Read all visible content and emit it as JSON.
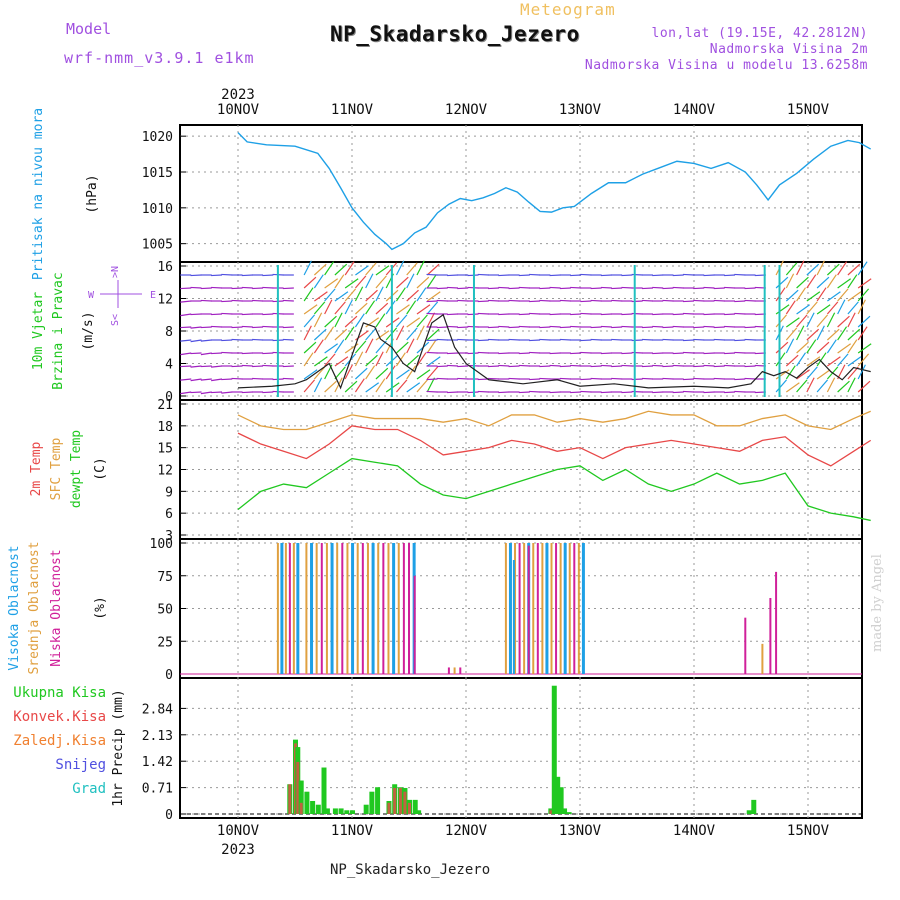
{
  "header": {
    "model_label": "Model",
    "model_name": "wrf-nmm_v3.9.1 e1km",
    "meteogram_word": "Meteogram",
    "title": "NP_Skadarsko_Jezero",
    "lonlat": "lon,lat (19.15E, 42.2812N)",
    "altitude_2m": "Nadmorska Visina 2m",
    "altitude_model": "Nadmorska Visina u modelu 13.6258m",
    "year_top": "2023",
    "year_bottom": "2023"
  },
  "footer": {
    "station_name": "NP_Skadarsko_Jezero",
    "credit": "made by Angel"
  },
  "colors": {
    "pressure": "#1ea0e6",
    "t2m": "#e84848",
    "sfc": "#e0a040",
    "dewpt": "#20c820",
    "high_cloud": "#1ea0e6",
    "mid_cloud": "#e0a040",
    "low_cloud": "#d0209a",
    "total_precip": "#20c820",
    "conv_precip": "#e84848",
    "frozen_precip": "#f08030",
    "snow": "#5050e0",
    "graupel": "#20c0c0",
    "wind_label": "#20c820",
    "title_shadow": "#888888"
  },
  "chart_data": [
    {
      "type": "line",
      "panel": "pressure",
      "ylabel_colored": "Pritisak na nivou mora",
      "ylabel_unit": "(hPa)",
      "x_tick_labels": [
        "10NOV",
        "11NOV",
        "12NOV",
        "13NOV",
        "14NOV",
        "15NOV"
      ],
      "ylim": [
        1003,
        1021
      ],
      "yticks": [
        1005,
        1010,
        1015,
        1020
      ],
      "grid": true,
      "x_days": [
        0,
        0.08,
        0.25,
        0.5,
        0.7,
        0.8,
        0.9,
        1.0,
        1.1,
        1.2,
        1.3,
        1.35,
        1.45,
        1.55,
        1.65,
        1.75,
        1.85,
        1.95,
        2.05,
        2.15,
        2.25,
        2.35,
        2.45,
        2.55,
        2.65,
        2.75,
        2.85,
        2.95,
        3.1,
        3.25,
        3.4,
        3.55,
        3.7,
        3.85,
        4.0,
        4.15,
        4.3,
        4.45,
        4.55,
        4.65,
        4.75,
        4.9,
        5.05,
        5.2,
        5.35,
        5.45,
        5.55
      ],
      "series": [
        {
          "values": [
            1020.5,
            1019.2,
            1018.8,
            1018.6,
            1017.6,
            1015.5,
            1012.8,
            1010.0,
            1008.0,
            1006.3,
            1005.0,
            1004.2,
            1005.0,
            1006.5,
            1007.3,
            1009.3,
            1010.5,
            1011.3,
            1011.0,
            1011.4,
            1012.0,
            1012.8,
            1012.2,
            1010.8,
            1009.5,
            1009.4,
            1010.0,
            1010.2,
            1012.0,
            1013.5,
            1013.5,
            1014.7,
            1015.6,
            1016.5,
            1016.2,
            1015.5,
            1016.3,
            1015.0,
            1013.2,
            1011.1,
            1013.2,
            1014.8,
            1016.8,
            1018.6,
            1019.4,
            1019.1,
            1018.2
          ]
        }
      ]
    },
    {
      "type": "line",
      "panel": "wind",
      "ylabel_colored_1": "10m Vjetar",
      "ylabel_colored_2": "Brzina i Pravac",
      "ylabel_unit": "(m/s)",
      "ylim": [
        0,
        16
      ],
      "yticks": [
        0,
        4,
        8,
        12,
        16
      ],
      "compass_note": "N, E, W, S compass legend",
      "x_days": [
        0,
        0.3,
        0.5,
        0.6,
        0.7,
        0.8,
        0.85,
        0.9,
        1.0,
        1.1,
        1.2,
        1.25,
        1.35,
        1.45,
        1.55,
        1.6,
        1.7,
        1.8,
        1.9,
        2.0,
        2.2,
        2.5,
        2.8,
        3.0,
        3.3,
        3.6,
        4.0,
        4.3,
        4.5,
        4.6,
        4.7,
        4.8,
        4.9,
        5.0,
        5.1,
        5.2,
        5.3,
        5.4,
        5.55
      ],
      "series": [
        {
          "name": "speed",
          "values": [
            1,
            1.2,
            1.5,
            2,
            3,
            4,
            2.5,
            1,
            5,
            9,
            8.5,
            7,
            6,
            4,
            3,
            5,
            9,
            10,
            6,
            4,
            2,
            1.5,
            2,
            1.2,
            1.5,
            1,
            1.2,
            1,
            1.5,
            3,
            2.5,
            3,
            2.2,
            3.5,
            4.5,
            3,
            2,
            3.5,
            3
          ]
        }
      ]
    },
    {
      "type": "line",
      "panel": "temperature",
      "ylabel_colored_1": "2m Temp",
      "ylabel_colored_2": "SFC Temp",
      "ylabel_colored_3": "dewpt Temp",
      "ylabel_unit": "(C)",
      "ylim": [
        3,
        21
      ],
      "yticks": [
        3,
        6,
        9,
        12,
        15,
        18,
        21
      ],
      "x_days": [
        0,
        0.2,
        0.4,
        0.6,
        0.8,
        1.0,
        1.2,
        1.4,
        1.6,
        1.8,
        2.0,
        2.2,
        2.4,
        2.6,
        2.8,
        3.0,
        3.2,
        3.4,
        3.6,
        3.8,
        4.0,
        4.2,
        4.4,
        4.6,
        4.8,
        5.0,
        5.2,
        5.4,
        5.55
      ],
      "series": [
        {
          "name": "2m Temp",
          "values": [
            17,
            15.5,
            14.5,
            13.5,
            15.5,
            18,
            17.5,
            17.5,
            16,
            14,
            14.5,
            15,
            16,
            15.5,
            14.5,
            15,
            13.5,
            15,
            15.5,
            16,
            15.5,
            15,
            14.5,
            16,
            16.5,
            14,
            12.5,
            14.5,
            16
          ]
        },
        {
          "name": "SFC Temp",
          "values": [
            19.5,
            18,
            17.5,
            17.5,
            18.5,
            19.5,
            19,
            19,
            19,
            18.5,
            19,
            18,
            19.5,
            19.5,
            18.5,
            19,
            18.5,
            19,
            20,
            19.5,
            19.5,
            18,
            18,
            19,
            19.5,
            18,
            17.5,
            19,
            20
          ]
        },
        {
          "name": "dewpt Temp",
          "values": [
            6.5,
            9,
            10,
            9.5,
            11.5,
            13.5,
            13,
            12.5,
            10,
            8.5,
            8,
            9,
            10,
            11,
            12,
            12.5,
            10.5,
            12,
            10,
            9,
            10,
            11.5,
            10,
            10.5,
            11.5,
            7,
            6,
            5.5,
            5
          ]
        }
      ]
    },
    {
      "type": "bar",
      "panel": "cloud",
      "ylabel_colored_1": "Visoka Oblacnost",
      "ylabel_colored_2": "Srednja Oblacnost",
      "ylabel_colored_3": "Niska Oblacnost",
      "ylabel_unit": "(%)",
      "ylim": [
        0,
        100
      ],
      "yticks": [
        0,
        25,
        50,
        75,
        100
      ],
      "groups": [
        {
          "start_day": 0.35,
          "end_day": 0.55,
          "step_day": 0.035,
          "high": 100,
          "mid": 100,
          "low": 0
        },
        {
          "start_day": 0.6,
          "end_day": 1.55,
          "step_day": 0.045,
          "high": 100,
          "mid": 100,
          "low": 0
        },
        {
          "start_day": 2.35,
          "end_day": 3.05,
          "step_day": 0.04,
          "high": 100,
          "mid": 100,
          "low": 0
        }
      ],
      "extras": [
        {
          "day": 1.5,
          "series": "low",
          "value": 100
        },
        {
          "day": 1.55,
          "series": "low",
          "value": 75
        },
        {
          "day": 1.85,
          "series": "low",
          "value": 5
        },
        {
          "day": 1.9,
          "series": "mid",
          "value": 5
        },
        {
          "day": 1.95,
          "series": "low",
          "value": 5
        },
        {
          "day": 2.42,
          "series": "high",
          "value": 87
        },
        {
          "day": 2.55,
          "series": "low",
          "value": 98
        },
        {
          "day": 4.45,
          "series": "low",
          "value": 43
        },
        {
          "day": 4.6,
          "series": "mid",
          "value": 23
        },
        {
          "day": 4.67,
          "series": "low",
          "value": 58
        },
        {
          "day": 4.72,
          "series": "low",
          "value": 78
        }
      ]
    },
    {
      "type": "bar",
      "panel": "precip",
      "ylabel_unit": "1hr Precip (mm)",
      "legend": [
        "Ukupna Kisa",
        "Konvek.Kisa",
        "Zaledj.Kisa",
        "Snijeg",
        "Grad"
      ],
      "ylim": [
        0,
        3.55
      ],
      "yticks": [
        0,
        0.71,
        1.42,
        2.13,
        2.84
      ],
      "x_days": [
        0.45,
        0.5,
        0.52,
        0.55,
        0.6,
        0.65,
        0.7,
        0.75,
        0.78,
        0.85,
        0.9,
        0.95,
        1.0,
        1.12,
        1.17,
        1.22,
        1.32,
        1.37,
        1.42,
        1.46,
        1.5,
        1.55,
        1.58,
        2.74,
        2.77,
        2.8,
        2.83,
        2.86,
        2.9,
        4.48,
        4.52
      ],
      "series": [
        {
          "name": "Ukupna Kisa",
          "values": [
            0.8,
            2.0,
            1.8,
            0.9,
            0.6,
            0.35,
            0.25,
            1.25,
            0.15,
            0.15,
            0.15,
            0.1,
            0.1,
            0.25,
            0.6,
            0.72,
            0.35,
            0.8,
            0.72,
            0.7,
            0.38,
            0.38,
            0.1,
            0.15,
            3.45,
            1.0,
            0.72,
            0.15,
            0.05,
            0.1,
            0.38
          ]
        },
        {
          "name": "Konvek.Kisa",
          "values": [
            0.8,
            1.9,
            1.4,
            0.3,
            0,
            0,
            0,
            0,
            0,
            0,
            0,
            0,
            0,
            0,
            0,
            0,
            0.3,
            0.7,
            0.7,
            0.6,
            0.3,
            0,
            0,
            0.1,
            0,
            0,
            0,
            0,
            0,
            0,
            0
          ]
        }
      ]
    }
  ]
}
